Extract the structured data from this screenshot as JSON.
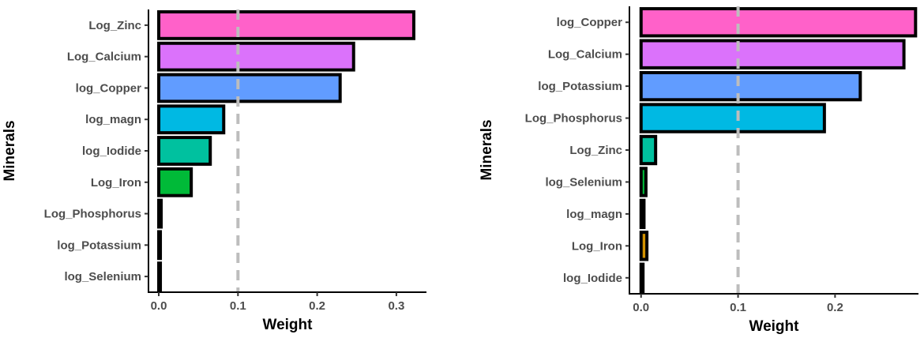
{
  "chart_data": [
    {
      "type": "bar",
      "orientation": "horizontal",
      "categories": [
        "Log_Zinc",
        "Log_Calcium",
        "log_Copper",
        "log_magn",
        "log_Iodide",
        "Log_Iron",
        "Log_Phosphorus",
        "log_Potassium",
        "log_Selenium"
      ],
      "values": [
        0.322,
        0.246,
        0.229,
        0.082,
        0.065,
        0.041,
        0.003,
        0.002,
        0.002
      ],
      "colors": [
        "#ff61c9",
        "#db72fb",
        "#619cff",
        "#00b9e3",
        "#00c19f",
        "#00ba38",
        "#93aa00",
        "#d39200",
        "#f8766d"
      ],
      "xlabel": "Weight",
      "ylabel": "Minerals",
      "xlim": [
        -0.013,
        0.338
      ],
      "xticks": [
        0.0,
        0.1,
        0.2,
        0.3
      ],
      "xtick_labels": [
        "0.0",
        "0.1",
        "0.2",
        "0.3"
      ],
      "reference_line": 0.1,
      "grid": false
    },
    {
      "type": "bar",
      "orientation": "horizontal",
      "categories": [
        "log_Copper",
        "Log_Calcium",
        "log_Potassium",
        "Log_Phosphorus",
        "Log_Zinc",
        "log_Selenium",
        "log_magn",
        "Log_Iron",
        "log_Iodide"
      ],
      "values": [
        0.283,
        0.271,
        0.226,
        0.189,
        0.015,
        0.005,
        0.003,
        0.006,
        0.002
      ],
      "colors": [
        "#ff61c9",
        "#db72fb",
        "#619cff",
        "#00b9e3",
        "#00c19f",
        "#00ba38",
        "#93aa00",
        "#d39200",
        "#f8766d"
      ],
      "xlabel": "Weight",
      "ylabel": "Minerals",
      "xlim": [
        -0.012,
        0.286
      ],
      "xticks": [
        0.0,
        0.1,
        0.2
      ],
      "xtick_labels": [
        "0.0",
        "0.1",
        "0.2"
      ],
      "reference_line": 0.1,
      "grid": false
    }
  ]
}
